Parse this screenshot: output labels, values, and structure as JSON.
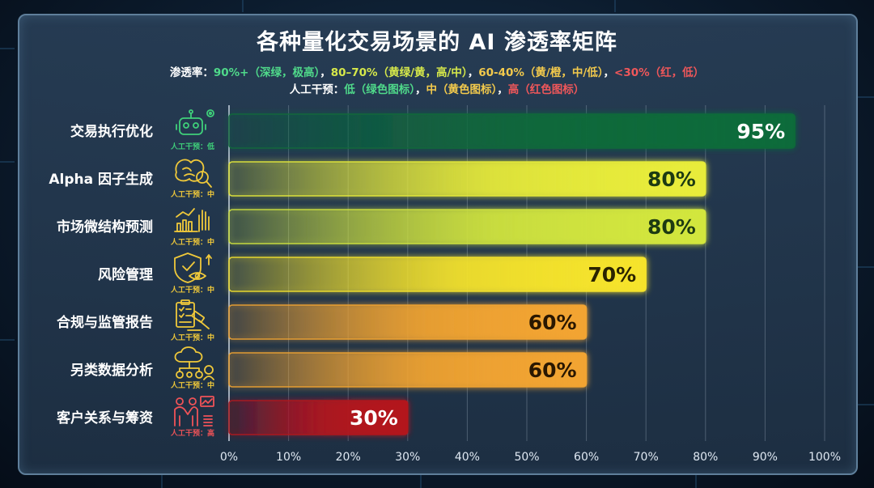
{
  "title": "各种量化交易场景的 AI 渗透率矩阵",
  "legend": {
    "line1_label": "渗透率：",
    "line1_items": [
      {
        "text": "90%+（深绿，极高）",
        "color": "#4fd98a"
      },
      {
        "text": "，",
        "color": "#ffffff"
      },
      {
        "text": "80–70%（黄绿/黄，高/中）",
        "color": "#d6e84a"
      },
      {
        "text": "，",
        "color": "#ffffff"
      },
      {
        "text": "60-40%（黄/橙，中/低）",
        "color": "#f2c94c"
      },
      {
        "text": "，",
        "color": "#ffffff"
      },
      {
        "text": "<30%（红，低）",
        "color": "#f0575a"
      }
    ],
    "line2_label": "人工干预：",
    "line2_items": [
      {
        "text": "低（绿色图标）",
        "color": "#4fd98a"
      },
      {
        "text": "，",
        "color": "#ffffff"
      },
      {
        "text": "中（黄色图标）",
        "color": "#f2c94c"
      },
      {
        "text": "，",
        "color": "#ffffff"
      },
      {
        "text": "高（红色图标）",
        "color": "#f0575a"
      }
    ]
  },
  "chart_data": {
    "type": "bar",
    "orientation": "horizontal",
    "title": "各种量化交易场景的 AI 渗透率矩阵",
    "categories": [
      "交易执行优化",
      "Alpha 因子生成",
      "市场微结构预测",
      "风险管理",
      "合规与监管报告",
      "另类数据分析",
      "客户关系与筹资"
    ],
    "values": [
      95,
      80,
      80,
      70,
      60,
      60,
      30
    ],
    "value_labels": [
      "95%",
      "80%",
      "80%",
      "70%",
      "60%",
      "60%",
      "30%"
    ],
    "intervention_labels": [
      "人工干预：低",
      "人工干预：中",
      "人工干预：中",
      "人工干预：中",
      "人工干预：中",
      "人工干预：中",
      "人工干预：高"
    ],
    "icons": [
      "robot-gear-icon",
      "brain-magnifier-icon",
      "chart-hand-icon",
      "shield-eye-icon",
      "clipboard-gavel-icon",
      "cloud-network-icon",
      "people-handshake-icon"
    ],
    "bar_colors": [
      "#0f6b3a",
      "#e8ec3a",
      "#d2e63e",
      "#f5e32c",
      "#f2a431",
      "#f2a431",
      "#b3141d"
    ],
    "value_text_colors": [
      "#ffffff",
      "#1d3a12",
      "#1d3a12",
      "#2a2300",
      "#2a1700",
      "#2a1700",
      "#ffffff"
    ],
    "icon_colors": [
      "#3fd07a",
      "#f0c93a",
      "#f0c93a",
      "#f0c93a",
      "#f0c93a",
      "#f0c93a",
      "#ef5358"
    ],
    "xlim": [
      0,
      100
    ],
    "xticks": [
      "0%",
      "10%",
      "20%",
      "30%",
      "40%",
      "50%",
      "60%",
      "70%",
      "80%",
      "90%",
      "100%"
    ],
    "grid": true
  }
}
